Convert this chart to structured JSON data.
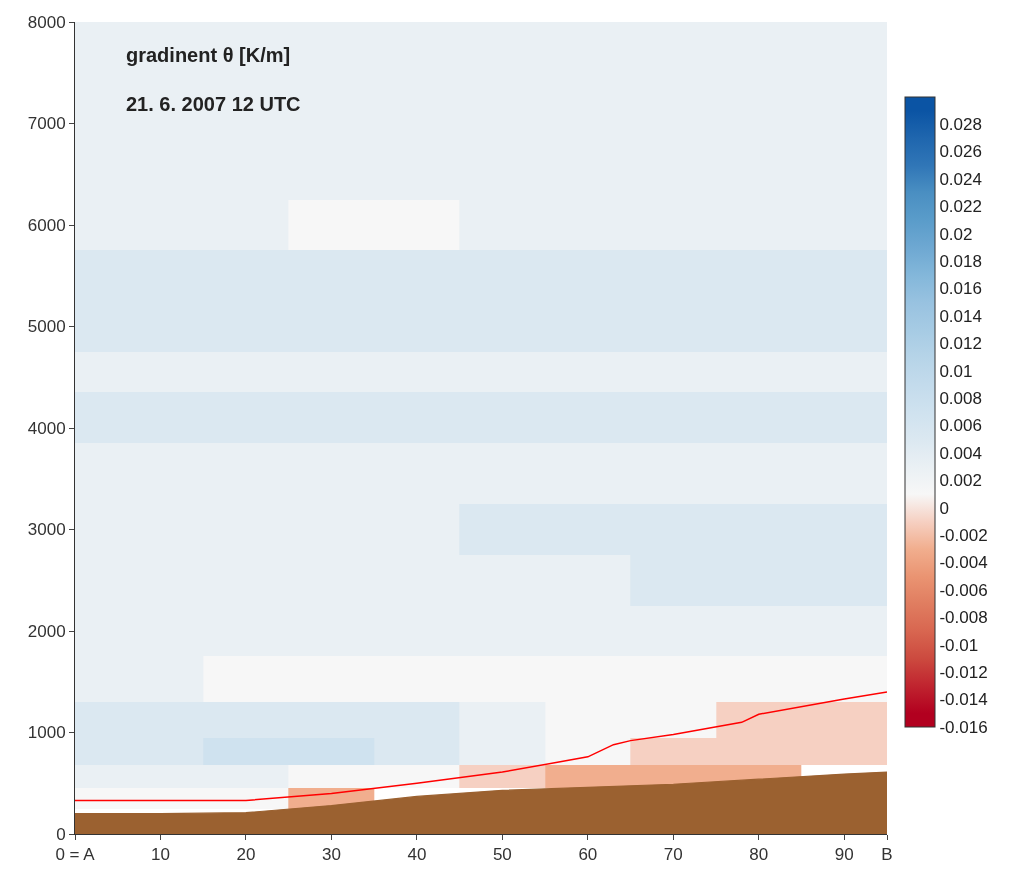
{
  "chart_data": {
    "type": "heatmap",
    "title": "gradinent θ [K/m]",
    "subtitle": "21. 6. 2007 12 UTC",
    "x": [
      0,
      10,
      20,
      30,
      40,
      50,
      60,
      70,
      80,
      90,
      95
    ],
    "y": [
      7500,
      6500,
      6000,
      5500,
      5000,
      4500,
      4200,
      3500,
      3000,
      2500,
      2000,
      1500,
      1100,
      800,
      550,
      350
    ],
    "cells": [
      [
        0.003,
        0.003,
        0.003,
        0.003,
        0.003,
        0.003,
        0.003,
        0.003,
        0.003,
        0.003,
        0.003
      ],
      [
        0.003,
        0.003,
        0.003,
        0.003,
        0.003,
        0.003,
        0.003,
        0.003,
        0.003,
        0.003,
        0.003
      ],
      [
        0.003,
        0.003,
        0.003,
        0.001,
        0.001,
        0.003,
        0.003,
        0.003,
        0.003,
        0.003,
        0.003
      ],
      [
        0.005,
        0.005,
        0.005,
        0.005,
        0.005,
        0.005,
        0.005,
        0.005,
        0.005,
        0.005,
        0.005
      ],
      [
        0.005,
        0.005,
        0.005,
        0.005,
        0.005,
        0.005,
        0.005,
        0.005,
        0.005,
        0.005,
        0.005
      ],
      [
        0.003,
        0.003,
        0.003,
        0.003,
        0.003,
        0.003,
        0.003,
        0.003,
        0.003,
        0.003,
        0.003
      ],
      [
        0.005,
        0.005,
        0.005,
        0.005,
        0.005,
        0.005,
        0.005,
        0.005,
        0.005,
        0.005,
        0.005
      ],
      [
        0.003,
        0.003,
        0.003,
        0.003,
        0.003,
        0.003,
        0.003,
        0.003,
        0.003,
        0.003,
        0.003
      ],
      [
        0.003,
        0.003,
        0.003,
        0.003,
        0.003,
        0.005,
        0.005,
        0.005,
        0.005,
        0.005,
        0.005
      ],
      [
        0.003,
        0.003,
        0.003,
        0.003,
        0.003,
        0.003,
        0.003,
        0.005,
        0.005,
        0.005,
        0.005
      ],
      [
        0.003,
        0.003,
        0.003,
        0.003,
        0.003,
        0.003,
        0.003,
        0.003,
        0.003,
        0.003,
        0.003
      ],
      [
        0.003,
        0.003,
        0.001,
        0.001,
        0.001,
        0.001,
        0.001,
        0.001,
        0.001,
        0.001,
        0.001
      ],
      [
        0.005,
        0.005,
        0.005,
        0.005,
        0.005,
        0.003,
        0.001,
        0.001,
        -0.001,
        -0.001,
        -0.001
      ],
      [
        0.005,
        0.005,
        0.007,
        0.007,
        0.005,
        0.003,
        0.001,
        -0.001,
        -0.001,
        -0.001,
        -0.001
      ],
      [
        0.003,
        0.003,
        0.003,
        0.001,
        0.001,
        -0.001,
        -0.003,
        -0.003,
        -0.003,
        null,
        null
      ],
      [
        0.001,
        0.001,
        0.001,
        -0.003,
        null,
        null,
        null,
        null,
        null,
        null,
        null
      ]
    ],
    "colors": [
      "#b2001f",
      "#c0242f",
      "#cc4a3f",
      "#d86650",
      "#e07d60",
      "#ea9472",
      "#f1ae8e",
      "#f6d0c2",
      "#f7f7f7",
      "#eaf0f4",
      "#dbe8f1",
      "#cfe2ef",
      "#c3dbec",
      "#b6d4e8",
      "#a6cbe4",
      "#98c2e0",
      "#83b7da",
      "#6ea8d2",
      "#5a9cca",
      "#4a8fc2",
      "#3076b7",
      "#1f66ae",
      "#0b54a4"
    ],
    "clim": [
      -0.016,
      0.03
    ],
    "cticks": [
      -0.016,
      -0.014,
      -0.012,
      -0.01,
      -0.008,
      -0.006,
      -0.004,
      -0.002,
      0,
      0.002,
      0.004,
      0.006,
      0.008,
      0.01,
      0.012,
      0.014,
      0.016,
      0.018,
      0.02,
      0.022,
      0.024,
      0.026,
      0.028
    ],
    "series": [
      {
        "type": "line",
        "color": "#ff0000",
        "x": [
          0,
          20,
          30,
          40,
          50,
          60,
          63,
          65,
          70,
          78,
          80,
          90,
          95
        ],
        "values": [
          330,
          330,
          400,
          500,
          610,
          760,
          880,
          920,
          980,
          1100,
          1180,
          1330,
          1400
        ]
      },
      {
        "type": "area",
        "color": "#9b6130",
        "x": [
          0,
          10,
          20,
          30,
          40,
          50,
          60,
          70,
          80,
          90,
          95
        ],
        "values": [
          200,
          200,
          210,
          280,
          370,
          430,
          460,
          490,
          540,
          590,
          610
        ]
      }
    ],
    "xlim": [
      0,
      95
    ],
    "xticks": [
      {
        "value": 0,
        "label": "0 = A"
      },
      10,
      20,
      30,
      40,
      50,
      60,
      70,
      80,
      90,
      {
        "value": 95,
        "label": "B"
      }
    ],
    "ylim": [
      0,
      8000
    ],
    "yticks": [
      0,
      1000,
      2000,
      3000,
      4000,
      5000,
      6000,
      7000,
      8000
    ]
  }
}
